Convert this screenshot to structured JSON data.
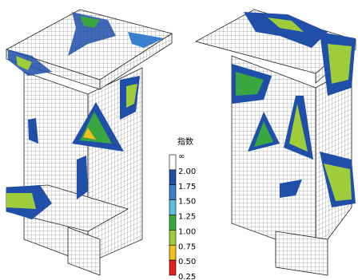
{
  "legend": {
    "title": "指数",
    "labels": [
      "∞",
      "2.00",
      "1.75",
      "1.50",
      "1.25",
      "1.00",
      "0.75",
      "0.50",
      "0.25"
    ],
    "colors": [
      "#ffffff",
      "#1f4fa8",
      "#3a7fcc",
      "#5bbfe0",
      "#3aa640",
      "#9fcc3a",
      "#f0c020",
      "#e02020"
    ]
  }
}
